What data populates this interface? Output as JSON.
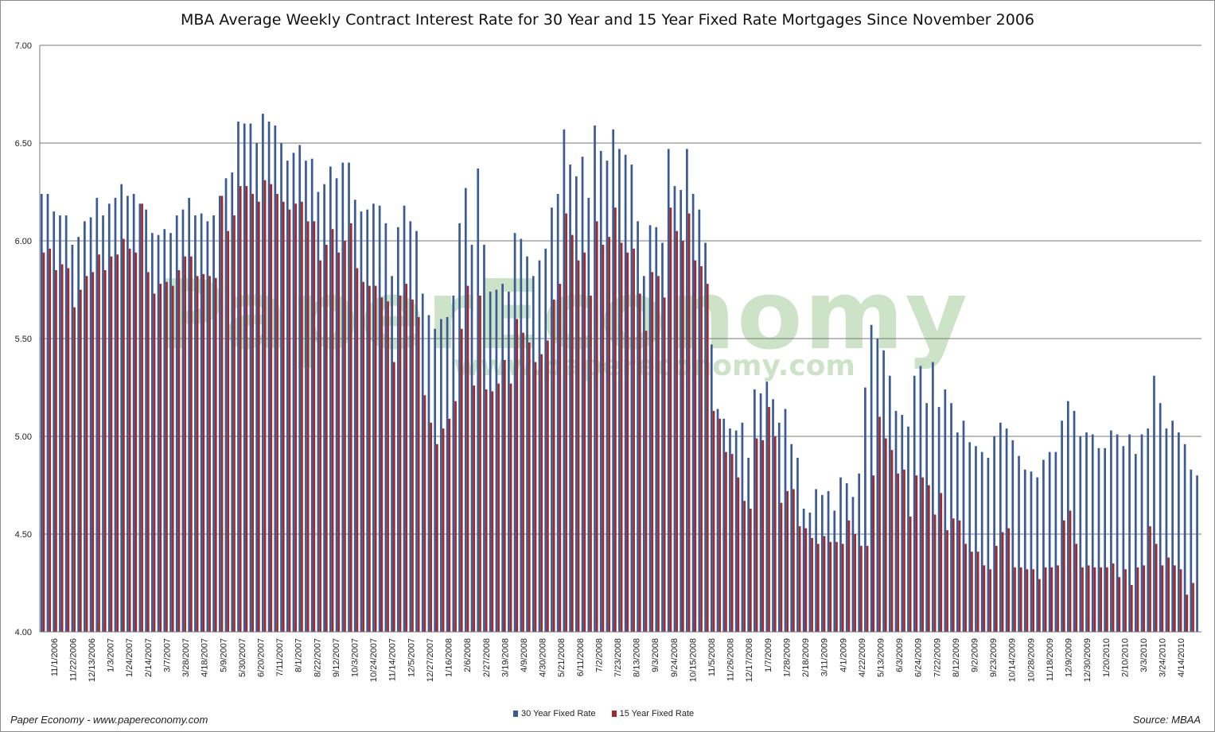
{
  "title": "MBA Average Weekly Contract Interest Rate for 30 Year and 15 Year Fixed Rate Mortgages Since November 2006",
  "watermark": {
    "text": "PaperEconomy",
    "url": "www.papereconomy.com"
  },
  "footer": {
    "left": "Paper Economy - www.papereconomy.com",
    "right": "Source: MBAA"
  },
  "colors": {
    "series30": "#3b5b96",
    "series15": "#a32a2a",
    "grid": "#777777",
    "axis": "#777777"
  },
  "chart_data": {
    "type": "bar",
    "title": "MBA Average Weekly Contract Interest Rate for 30 Year and 15 Year Fixed Rate Mortgages Since November 2006",
    "xlabel": "",
    "ylabel": "",
    "ylim": [
      4.0,
      7.0
    ],
    "yticks": [
      "4.00",
      "4.50",
      "5.00",
      "5.50",
      "6.00",
      "6.50",
      "7.00"
    ],
    "grid": "horizontal",
    "legend_position": "bottom",
    "x_tick_labels": [
      "11/1/2006",
      "11/22/2006",
      "12/13/2006",
      "1/3/2007",
      "1/24/2007",
      "2/14/2007",
      "3/7/2007",
      "3/28/2007",
      "4/18/2007",
      "5/9/2007",
      "5/30/2007",
      "6/20/2007",
      "7/11/2007",
      "8/1/2007",
      "8/22/2007",
      "9/12/2007",
      "10/3/2007",
      "10/24/2007",
      "11/14/2007",
      "12/5/2007",
      "12/27/2007",
      "1/16/2008",
      "2/6/2008",
      "2/27/2008",
      "3/19/2008",
      "4/9/2008",
      "4/30/2008",
      "5/21/2008",
      "6/11/2008",
      "7/2/2008",
      "7/23/2008",
      "8/13/2008",
      "9/3/2008",
      "9/24/2008",
      "10/15/2008",
      "11/5/2008",
      "11/26/2008",
      "12/17/2008",
      "1/7/2009",
      "1/28/2009",
      "2/18/2009",
      "3/11/2009",
      "4/1/2009",
      "4/22/2009",
      "5/13/2009",
      "6/3/2009",
      "6/24/2009",
      "7/22/2009",
      "8/12/2009",
      "9/2/2009",
      "9/23/2009",
      "10/14/2009",
      "10/28/2009",
      "11/18/2009",
      "12/9/2009",
      "12/30/2009",
      "1/20/2010",
      "2/10/2010",
      "3/3/2010",
      "3/24/2010",
      "4/14/2010"
    ],
    "series": [
      {
        "name": "30 Year Fixed Rate",
        "values": [
          6.24,
          6.24,
          6.15,
          6.13,
          6.13,
          5.98,
          6.02,
          6.1,
          6.12,
          6.22,
          6.13,
          6.19,
          6.22,
          6.29,
          6.23,
          6.24,
          6.19,
          6.16,
          6.04,
          6.03,
          6.06,
          6.04,
          6.13,
          6.16,
          6.22,
          6.13,
          6.14,
          6.1,
          6.13,
          6.23,
          6.32,
          6.35,
          6.61,
          6.6,
          6.6,
          6.5,
          6.65,
          6.61,
          6.59,
          6.5,
          6.41,
          6.45,
          6.49,
          6.41,
          6.42,
          6.25,
          6.29,
          6.38,
          6.32,
          6.4,
          6.4,
          6.21,
          6.15,
          6.16,
          6.19,
          6.18,
          6.09,
          5.82,
          6.07,
          6.18,
          6.1,
          6.05,
          5.73,
          5.62,
          5.55,
          5.6,
          5.61,
          5.72,
          6.09,
          6.27,
          5.98,
          6.37,
          5.98,
          5.74,
          5.75,
          5.78,
          5.74,
          6.04,
          6.01,
          5.92,
          5.82,
          5.9,
          5.96,
          6.17,
          6.24,
          6.57,
          6.39,
          6.33,
          6.43,
          6.22,
          6.59,
          6.46,
          6.41,
          6.57,
          6.47,
          6.44,
          6.39,
          6.1,
          5.82,
          6.08,
          6.07,
          5.99,
          6.47,
          6.28,
          6.26,
          6.47,
          6.24,
          6.16,
          5.99,
          5.47,
          5.14,
          5.09,
          5.04,
          5.03,
          5.07,
          4.89,
          5.24,
          5.22,
          5.28,
          5.19,
          5.07,
          5.14,
          4.96,
          4.89,
          4.63,
          4.61,
          4.73,
          4.7,
          4.72,
          4.62,
          4.79,
          4.76,
          4.69,
          4.81,
          5.25,
          5.57,
          5.5,
          5.44,
          5.31,
          5.13,
          5.11,
          5.05,
          5.31,
          5.36,
          5.17,
          5.38,
          5.15,
          5.24,
          5.17,
          5.02,
          5.08,
          4.97,
          4.95,
          4.92,
          4.89,
          5.0,
          5.07,
          5.04,
          4.98,
          4.9,
          4.83,
          4.82,
          4.79,
          4.88,
          4.92,
          4.92,
          5.08,
          5.18,
          5.13,
          5.0,
          5.02,
          5.01,
          4.94,
          4.94,
          5.03,
          5.01,
          4.95,
          5.01,
          4.91,
          5.01,
          5.04,
          5.31,
          5.17,
          5.04,
          5.08,
          5.02,
          4.96,
          4.83,
          4.8
        ]
      },
      {
        "name": "15 Year Fixed Rate",
        "values": [
          5.94,
          5.96,
          5.85,
          5.88,
          5.86,
          5.66,
          5.75,
          5.82,
          5.84,
          5.93,
          5.85,
          5.92,
          5.93,
          6.01,
          5.96,
          5.94,
          6.19,
          5.84,
          5.73,
          5.78,
          5.79,
          5.77,
          5.85,
          5.92,
          5.92,
          5.82,
          5.83,
          5.82,
          5.81,
          6.23,
          6.05,
          6.13,
          6.28,
          6.28,
          6.24,
          6.2,
          6.31,
          6.29,
          6.24,
          6.2,
          6.16,
          6.19,
          6.2,
          6.1,
          6.1,
          5.9,
          5.98,
          6.06,
          5.94,
          6.0,
          6.09,
          5.86,
          5.79,
          5.77,
          5.77,
          5.71,
          5.69,
          5.38,
          5.72,
          5.78,
          5.7,
          5.61,
          5.21,
          5.07,
          4.96,
          5.04,
          5.09,
          5.18,
          5.55,
          5.77,
          5.26,
          5.72,
          5.24,
          5.23,
          5.27,
          5.39,
          5.27,
          5.6,
          5.53,
          5.48,
          5.38,
          5.42,
          5.49,
          5.7,
          5.78,
          6.14,
          6.03,
          5.9,
          5.94,
          5.72,
          6.1,
          5.98,
          6.02,
          6.17,
          5.99,
          5.94,
          5.96,
          5.73,
          5.54,
          5.84,
          5.82,
          5.71,
          6.17,
          6.05,
          6.0,
          6.14,
          5.9,
          5.87,
          5.78,
          5.13,
          5.09,
          4.92,
          4.91,
          4.79,
          4.67,
          4.63,
          4.99,
          4.98,
          5.15,
          5.0,
          4.66,
          4.72,
          4.73,
          4.54,
          4.53,
          4.48,
          4.45,
          4.49,
          4.46,
          4.46,
          4.45,
          4.57,
          4.5,
          4.44,
          4.44,
          4.8,
          5.1,
          4.99,
          4.93,
          4.81,
          4.83,
          4.59,
          4.8,
          4.79,
          4.75,
          4.6,
          4.71,
          4.52,
          4.58,
          4.57,
          4.45,
          4.41,
          4.41,
          4.34,
          4.32,
          4.44,
          4.51,
          4.53,
          4.33,
          4.33,
          4.32,
          4.32,
          4.27,
          4.33,
          4.33,
          4.34,
          4.57,
          4.62,
          4.45,
          4.33,
          4.34,
          4.33,
          4.33,
          4.33,
          4.35,
          4.28,
          4.32,
          4.24,
          4.33,
          4.34,
          4.54,
          4.45,
          4.34,
          4.38,
          4.34,
          4.32,
          4.19,
          4.25
        ]
      }
    ]
  }
}
